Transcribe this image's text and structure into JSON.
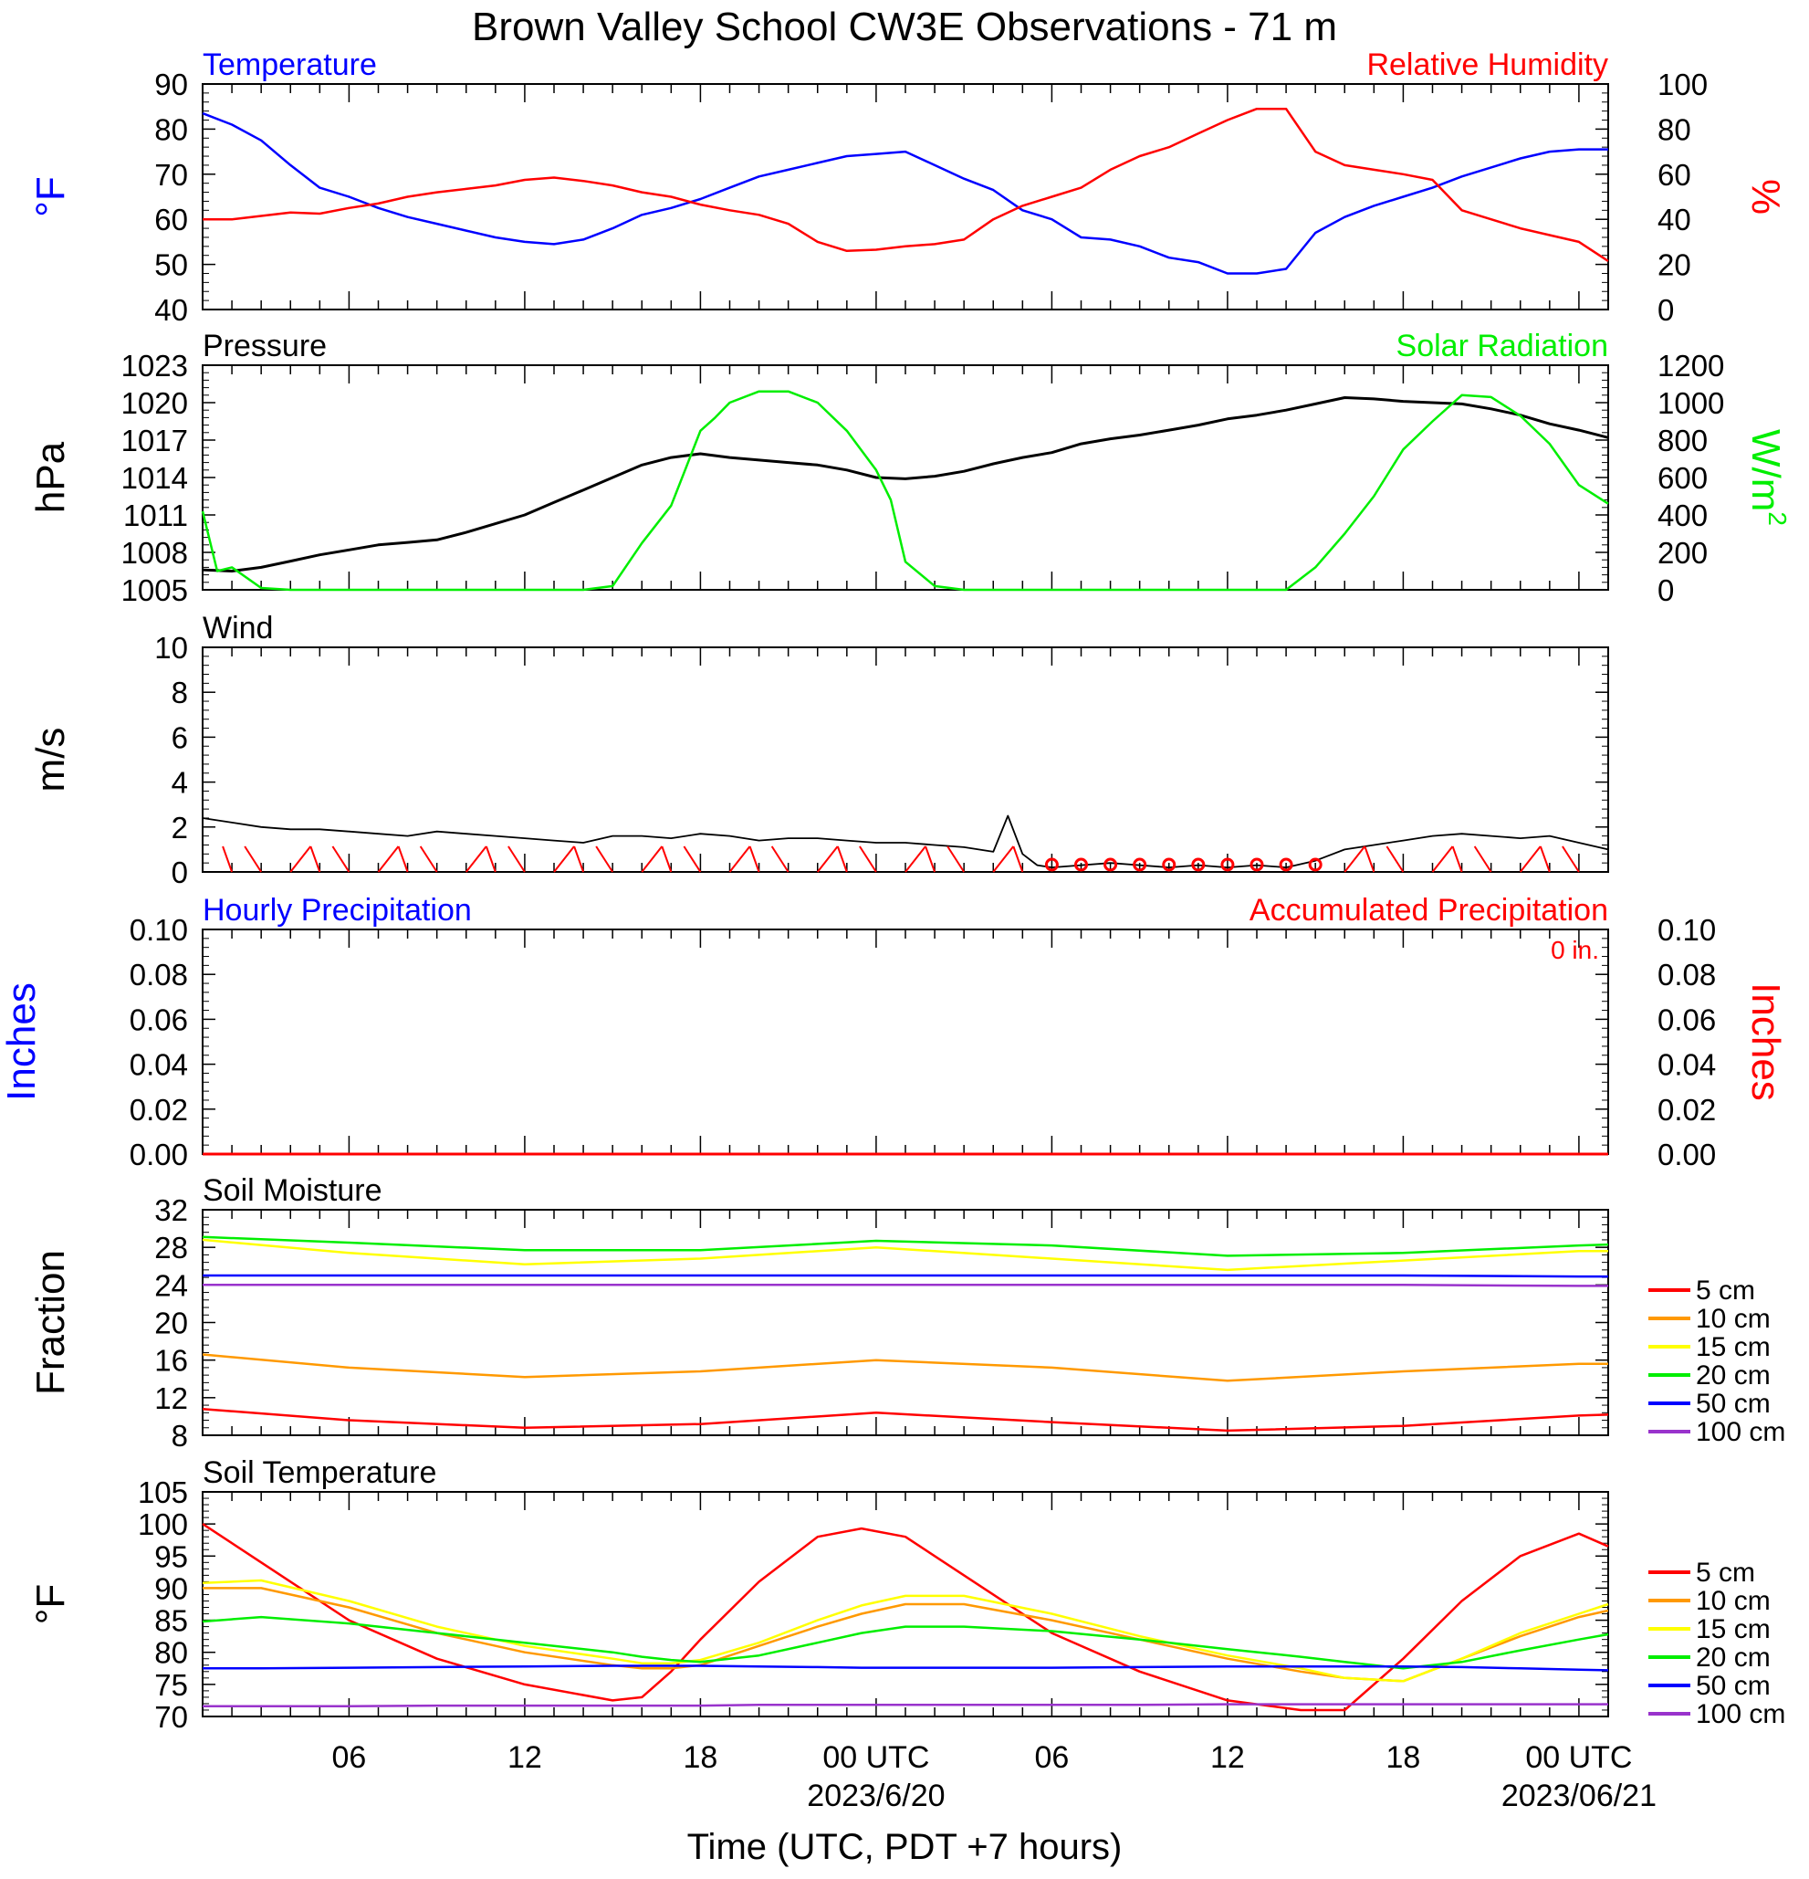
{
  "title": "Brown Valley School CW3E Observations - 71 m",
  "x_axis": {
    "title": "Time (UTC, PDT +7 hours)",
    "start_hour": 1,
    "end_hour": 49,
    "tick_labels": [
      {
        "hour": 6,
        "label": "06",
        "sub": ""
      },
      {
        "hour": 12,
        "label": "12",
        "sub": ""
      },
      {
        "hour": 18,
        "label": "18",
        "sub": ""
      },
      {
        "hour": 24,
        "label": "00 UTC",
        "sub": "2023/6/20"
      },
      {
        "hour": 30,
        "label": "06",
        "sub": ""
      },
      {
        "hour": 36,
        "label": "12",
        "sub": ""
      },
      {
        "hour": 42,
        "label": "18",
        "sub": ""
      },
      {
        "hour": 48,
        "label": "00 UTC",
        "sub": "2023/06/21"
      }
    ]
  },
  "colors": {
    "temperature": "#0000ff",
    "humidity": "#ff0000",
    "pressure": "#000000",
    "solar": "#00ee00",
    "wind": "#000000",
    "barb": "#ff0000",
    "soil_5cm": "#ff0000",
    "soil_10cm": "#ff9900",
    "soil_15cm": "#ffff00",
    "soil_20cm": "#00ee00",
    "soil_50cm": "#0000ff",
    "soil_100cm": "#9933cc"
  },
  "panels": {
    "temp_rh": {
      "left_title": "Temperature",
      "right_title": "Relative Humidity",
      "left_unit": "°F",
      "right_unit": "%",
      "left_ylim": [
        40,
        90
      ],
      "right_ylim": [
        0,
        100
      ],
      "left_ticks": [
        "40",
        "50",
        "60",
        "70",
        "80",
        "90"
      ],
      "right_ticks": [
        "0",
        "20",
        "40",
        "60",
        "80",
        "100"
      ]
    },
    "pressure_solar": {
      "left_title": "Pressure",
      "right_title": "Solar Radiation",
      "left_unit": "hPa",
      "right_unit": "W/m",
      "right_unit_sup": "2",
      "left_ylim": [
        1005,
        1023
      ],
      "right_ylim": [
        0,
        1200
      ],
      "left_ticks": [
        "1005",
        "1008",
        "1011",
        "1014",
        "1017",
        "1020",
        "1023"
      ],
      "right_ticks": [
        "0",
        "200",
        "400",
        "600",
        "800",
        "1000",
        "1200"
      ]
    },
    "wind": {
      "left_title": "Wind",
      "left_unit": "m/s",
      "left_ylim": [
        0,
        10
      ],
      "left_ticks": [
        "0",
        "2",
        "4",
        "6",
        "8",
        "10"
      ]
    },
    "precip": {
      "left_title": "Hourly Precipitation",
      "right_title": "Accumulated Precipitation",
      "total_label": "0 in.",
      "left_unit": "Inches",
      "right_unit": "Inches",
      "left_ylim": [
        0,
        0.1
      ],
      "right_ylim": [
        0,
        0.1
      ],
      "left_ticks": [
        "0.00",
        "0.02",
        "0.04",
        "0.06",
        "0.08",
        "0.10"
      ],
      "right_ticks": [
        "0.00",
        "0.02",
        "0.04",
        "0.06",
        "0.08",
        "0.10"
      ]
    },
    "soil_moisture": {
      "left_title": "Soil Moisture",
      "left_unit": "Fraction",
      "left_ylim": [
        8,
        32
      ],
      "left_ticks": [
        "8",
        "12",
        "16",
        "20",
        "24",
        "28",
        "32"
      ]
    },
    "soil_temp": {
      "left_title": "Soil Temperature",
      "left_unit": "°F",
      "left_ylim": [
        70,
        105
      ],
      "left_ticks": [
        "70",
        "75",
        "80",
        "85",
        "90",
        "95",
        "100",
        "105"
      ]
    }
  },
  "legend": [
    "5 cm",
    "10 cm",
    "15 cm",
    "20 cm",
    "50 cm",
    "100 cm"
  ],
  "chart_data": [
    {
      "type": "line",
      "title": "Temperature / Relative Humidity",
      "series": [
        {
          "name": "Temperature",
          "axis": "left",
          "color": "#0000ff",
          "x": [
            1,
            2,
            3,
            4,
            5,
            6,
            7,
            8,
            9,
            10,
            11,
            12,
            13,
            14,
            15,
            16,
            17,
            18,
            19,
            20,
            21,
            22,
            23,
            24,
            25,
            26,
            27,
            28,
            29,
            30,
            31,
            32,
            33,
            34,
            35,
            36,
            37,
            38,
            39,
            40,
            41,
            42,
            43,
            44,
            45,
            46,
            47,
            48,
            49
          ],
          "values": [
            83.5,
            81,
            77.5,
            72,
            67,
            65,
            62.5,
            60.5,
            59,
            57.5,
            56,
            55,
            54.5,
            55.5,
            58,
            61,
            62.5,
            64.5,
            67,
            69.5,
            71,
            72.5,
            74,
            74.5,
            75,
            72,
            69,
            66.5,
            62,
            60,
            56,
            55.5,
            54,
            51.5,
            50.5,
            48,
            48,
            49,
            57,
            60.5,
            63,
            65,
            67,
            69.5,
            71.5,
            73.5,
            75,
            75.5,
            75.5
          ]
        },
        {
          "name": "Relative Humidity",
          "axis": "right",
          "color": "#ff0000",
          "x": [
            1,
            2,
            3,
            4,
            5,
            6,
            7,
            8,
            9,
            10,
            11,
            12,
            13,
            14,
            15,
            16,
            17,
            18,
            19,
            20,
            21,
            22,
            23,
            24,
            25,
            26,
            27,
            28,
            29,
            30,
            31,
            32,
            33,
            34,
            35,
            36,
            37,
            38,
            39,
            40,
            41,
            42,
            43,
            44,
            45,
            46,
            47,
            48,
            49
          ],
          "values": [
            40,
            40,
            41.5,
            43,
            42.5,
            45,
            47,
            50,
            52,
            53.5,
            55,
            57.5,
            58.5,
            57,
            55,
            52,
            50,
            46.5,
            44,
            42,
            38,
            30,
            26,
            26.5,
            28,
            29,
            31,
            40,
            46,
            50,
            54,
            62,
            68,
            72,
            78,
            84,
            89,
            89,
            70,
            64,
            62,
            60,
            57.5,
            44,
            40,
            36,
            33,
            30,
            21.5
          ]
        }
      ]
    },
    {
      "type": "line",
      "title": "Pressure / Solar Radiation",
      "series": [
        {
          "name": "Pressure",
          "axis": "left",
          "color": "#000000",
          "x": [
            1,
            2,
            3,
            4,
            5,
            6,
            7,
            8,
            9,
            10,
            11,
            12,
            13,
            14,
            15,
            16,
            17,
            18,
            19,
            20,
            21,
            22,
            23,
            24,
            25,
            26,
            27,
            28,
            29,
            30,
            31,
            32,
            33,
            34,
            35,
            36,
            37,
            38,
            39,
            40,
            41,
            42,
            43,
            44,
            45,
            46,
            47,
            48,
            49
          ],
          "values": [
            1006.6,
            1006.5,
            1006.8,
            1007.3,
            1007.8,
            1008.2,
            1008.6,
            1008.8,
            1009,
            1009.6,
            1010.3,
            1011,
            1012,
            1013,
            1014,
            1015,
            1015.6,
            1015.9,
            1015.6,
            1015.4,
            1015.2,
            1015,
            1014.6,
            1014,
            1013.9,
            1014.1,
            1014.5,
            1015.1,
            1015.6,
            1016,
            1016.7,
            1017.1,
            1017.4,
            1017.8,
            1018.2,
            1018.7,
            1019,
            1019.4,
            1019.9,
            1020.4,
            1020.3,
            1020.1,
            1020,
            1019.9,
            1019.5,
            1019,
            1018.3,
            1017.8,
            1017.2
          ]
        },
        {
          "name": "Solar Radiation",
          "axis": "right",
          "color": "#00ee00",
          "x": [
            1,
            1.5,
            2,
            3,
            4,
            5,
            6,
            7,
            8,
            9,
            10,
            11,
            12,
            13,
            14,
            15,
            16,
            17,
            17.5,
            18,
            18.5,
            19,
            20,
            21,
            22,
            23,
            24,
            24.5,
            25,
            26,
            27,
            28,
            29,
            30,
            31,
            32,
            33,
            34,
            35,
            36,
            37,
            38,
            39,
            40,
            41,
            42,
            43,
            44,
            45,
            46,
            47,
            48,
            49
          ],
          "values": [
            420,
            100,
            120,
            10,
            0,
            0,
            0,
            0,
            0,
            0,
            0,
            0,
            0,
            0,
            0,
            20,
            250,
            450,
            650,
            850,
            920,
            1000,
            1060,
            1060,
            1000,
            850,
            640,
            480,
            150,
            20,
            0,
            0,
            0,
            0,
            0,
            0,
            0,
            0,
            0,
            0,
            0,
            0,
            120,
            300,
            500,
            750,
            900,
            1040,
            1030,
            930,
            780,
            560,
            460
          ]
        }
      ]
    },
    {
      "type": "line",
      "title": "Wind",
      "series": [
        {
          "name": "Wind",
          "axis": "left",
          "color": "#000000",
          "x": [
            1,
            2,
            3,
            4,
            5,
            6,
            7,
            8,
            9,
            10,
            11,
            12,
            13,
            14,
            15,
            16,
            17,
            18,
            19,
            20,
            21,
            22,
            23,
            24,
            25,
            26,
            27,
            28,
            28.5,
            29,
            29.5,
            30,
            31,
            32,
            33,
            34,
            35,
            36,
            37,
            38,
            39,
            40,
            41,
            42,
            43,
            44,
            45,
            46,
            47,
            48,
            49
          ],
          "values": [
            2.4,
            2.2,
            2,
            1.9,
            1.9,
            1.8,
            1.7,
            1.6,
            1.8,
            1.7,
            1.6,
            1.5,
            1.4,
            1.3,
            1.6,
            1.6,
            1.5,
            1.7,
            1.6,
            1.4,
            1.5,
            1.5,
            1.4,
            1.3,
            1.3,
            1.2,
            1.1,
            0.9,
            2.5,
            0.8,
            0.3,
            0.2,
            0.3,
            0.4,
            0.3,
            0.2,
            0.3,
            0.2,
            0.3,
            0.2,
            0.5,
            1,
            1.2,
            1.4,
            1.6,
            1.7,
            1.6,
            1.5,
            1.6,
            1.3,
            1
          ]
        }
      ]
    },
    {
      "type": "line",
      "title": "Hourly / Accumulated Precipitation",
      "series": [
        {
          "name": "Hourly Precipitation",
          "axis": "left",
          "color": "#0000ff",
          "x": [
            1,
            49
          ],
          "values": [
            0,
            0
          ]
        },
        {
          "name": "Accumulated Precipitation",
          "axis": "right",
          "color": "#ff0000",
          "x": [
            1,
            49
          ],
          "values": [
            0,
            0
          ]
        }
      ]
    },
    {
      "type": "line",
      "title": "Soil Moisture",
      "x": [
        1,
        6,
        12,
        18,
        24,
        30,
        36,
        42,
        48,
        49
      ],
      "series": [
        {
          "name": "5 cm",
          "color": "#ff0000",
          "values": [
            10.8,
            9.6,
            8.8,
            9.2,
            10.4,
            9.4,
            8.5,
            9,
            10.1,
            10.2
          ]
        },
        {
          "name": "10 cm",
          "color": "#ff9900",
          "values": [
            16.6,
            15.2,
            14.2,
            14.8,
            16,
            15.2,
            13.8,
            14.8,
            15.6,
            15.6
          ]
        },
        {
          "name": "15 cm",
          "color": "#ffff00",
          "values": [
            28.8,
            27.4,
            26.2,
            26.8,
            28,
            26.8,
            25.6,
            26.6,
            27.6,
            27.6
          ]
        },
        {
          "name": "20 cm",
          "color": "#00ee00",
          "values": [
            29.1,
            28.5,
            27.7,
            27.7,
            28.7,
            28.2,
            27.1,
            27.4,
            28.2,
            28.3
          ]
        },
        {
          "name": "50 cm",
          "color": "#0000ff",
          "values": [
            25,
            25,
            25,
            25,
            25,
            25,
            25,
            25,
            24.9,
            24.9
          ]
        },
        {
          "name": "100 cm",
          "color": "#9933cc",
          "values": [
            24,
            24,
            24,
            24,
            24,
            24,
            24,
            24,
            23.9,
            23.9
          ]
        }
      ]
    },
    {
      "type": "line",
      "title": "Soil Temperature",
      "x": [
        1,
        3,
        6,
        9,
        12,
        15,
        16,
        17,
        18,
        20,
        22,
        23.5,
        25,
        27,
        30,
        33,
        36,
        38.5,
        40,
        42,
        44,
        46,
        48,
        49
      ],
      "series": [
        {
          "name": "5 cm",
          "color": "#ff0000",
          "values": [
            100,
            94,
            85,
            79,
            75,
            72.5,
            73,
            77,
            82,
            91,
            98,
            99.3,
            98,
            92,
            83,
            77,
            72.5,
            71,
            71,
            79,
            88,
            95,
            98.5,
            96.5
          ]
        },
        {
          "name": "10 cm",
          "color": "#ff9900",
          "values": [
            90,
            90,
            87,
            83,
            80,
            78,
            77.5,
            77.5,
            78,
            81,
            84,
            86,
            87.5,
            87.5,
            85,
            82,
            79,
            77,
            76,
            75.5,
            79,
            82.5,
            85.5,
            86.5
          ]
        },
        {
          "name": "15 cm",
          "color": "#ffff00",
          "values": [
            90.8,
            91.2,
            88,
            84,
            81,
            79,
            78.3,
            78.3,
            78.8,
            81.5,
            85,
            87.3,
            88.8,
            88.8,
            86,
            82.5,
            79.5,
            77.5,
            76,
            75.5,
            79,
            83,
            86,
            87.5
          ]
        },
        {
          "name": "20 cm",
          "color": "#00ee00",
          "values": [
            84.8,
            85.5,
            84.5,
            83,
            81.5,
            80,
            79.3,
            78.8,
            78.5,
            79.5,
            81.5,
            83,
            84,
            84,
            83.3,
            82,
            80.5,
            79.3,
            78.5,
            77.5,
            78.5,
            80.3,
            82,
            82.8
          ]
        },
        {
          "name": "50 cm",
          "color": "#0000ff",
          "values": [
            77.5,
            77.5,
            77.6,
            77.7,
            77.8,
            77.9,
            77.9,
            77.9,
            77.9,
            77.8,
            77.7,
            77.6,
            77.6,
            77.6,
            77.6,
            77.7,
            77.8,
            77.8,
            77.8,
            77.8,
            77.7,
            77.5,
            77.3,
            77.2
          ]
        },
        {
          "name": "100 cm",
          "color": "#9933cc",
          "values": [
            71.6,
            71.6,
            71.6,
            71.7,
            71.7,
            71.7,
            71.7,
            71.7,
            71.7,
            71.8,
            71.8,
            71.8,
            71.8,
            71.8,
            71.8,
            71.8,
            71.9,
            71.9,
            71.9,
            71.9,
            71.9,
            71.9,
            71.9,
            71.9
          ]
        }
      ]
    }
  ]
}
